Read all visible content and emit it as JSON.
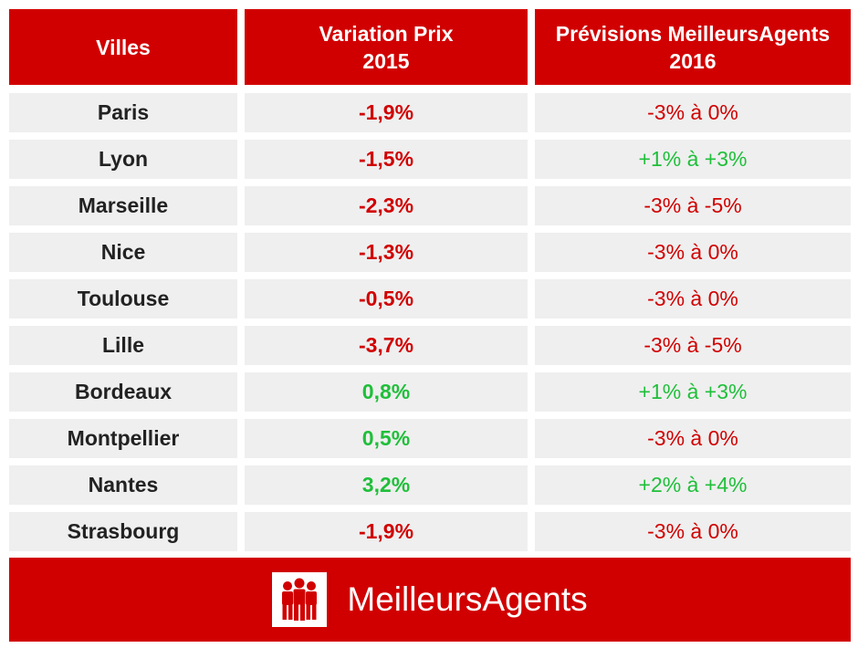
{
  "chart_data": {
    "type": "table",
    "headers": {
      "city": "Villes",
      "variation_line1": "Variation Prix",
      "variation_line2": "2015",
      "forecast_line1": "Prévisions MeilleursAgents",
      "forecast_line2": "2016"
    },
    "rows": [
      {
        "city": "Paris",
        "variation": "-1,9%",
        "variation_value": -1.9,
        "forecast": "-3% à 0%",
        "forecast_sign": "neg"
      },
      {
        "city": "Lyon",
        "variation": "-1,5%",
        "variation_value": -1.5,
        "forecast": "+1% à +3%",
        "forecast_sign": "pos"
      },
      {
        "city": "Marseille",
        "variation": "-2,3%",
        "variation_value": -2.3,
        "forecast": "-3% à -5%",
        "forecast_sign": "neg"
      },
      {
        "city": "Nice",
        "variation": "-1,3%",
        "variation_value": -1.3,
        "forecast": "-3% à 0%",
        "forecast_sign": "neg"
      },
      {
        "city": "Toulouse",
        "variation": "-0,5%",
        "variation_value": -0.5,
        "forecast": "-3% à 0%",
        "forecast_sign": "neg"
      },
      {
        "city": "Lille",
        "variation": "-3,7%",
        "variation_value": -3.7,
        "forecast": "-3% à -5%",
        "forecast_sign": "neg"
      },
      {
        "city": "Bordeaux",
        "variation": "0,8%",
        "variation_value": 0.8,
        "forecast": "+1% à +3%",
        "forecast_sign": "pos"
      },
      {
        "city": "Montpellier",
        "variation": "0,5%",
        "variation_value": 0.5,
        "forecast": "-3% à 0%",
        "forecast_sign": "neg"
      },
      {
        "city": "Nantes",
        "variation": "3,2%",
        "variation_value": 3.2,
        "forecast": "+2% à +4%",
        "forecast_sign": "pos"
      },
      {
        "city": "Strasbourg",
        "variation": "-1,9%",
        "variation_value": -1.9,
        "forecast": "-3% à 0%",
        "forecast_sign": "neg"
      }
    ]
  },
  "colors": {
    "header_bg": "#d10000",
    "row_bg": "#efefef",
    "negative": "#d10000",
    "positive": "#1fbf3a",
    "city_text": "#222222"
  },
  "footer": {
    "brand": "MeilleursAgents",
    "logo_icon": "three-people-icon"
  }
}
